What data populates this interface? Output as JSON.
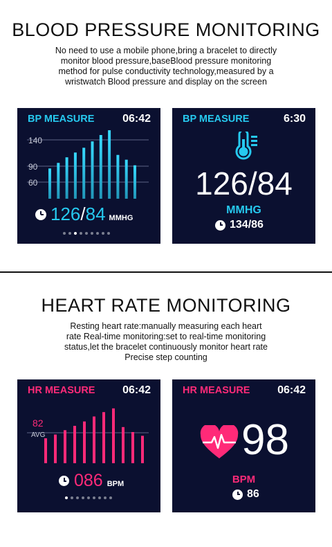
{
  "blood_pressure": {
    "title": "BLOOD PRESSURE MONITORING",
    "description": [
      "No need to use a mobile phone,bring a bracelet to directly",
      "monitor blood pressure,baseBlood pressure monitoring",
      "method for pulse conductivity technology,measured by a",
      "wristwatch Blood pressure and display on the screen"
    ],
    "screen1": {
      "label": "BP MEASURE",
      "time": "06:42",
      "y_ticks": [
        "140",
        "90",
        "60"
      ],
      "systolic": "126",
      "separator": "/",
      "diastolic": "84",
      "unit": "MMHG",
      "bars": [
        0.38,
        0.45,
        0.52,
        0.58,
        0.64,
        0.72,
        0.8,
        0.86,
        0.55,
        0.49,
        0.42
      ],
      "page_count": 9,
      "active_page": 2
    },
    "screen2": {
      "label": "BP MEASURE",
      "time": "6:30",
      "reading": "126/84",
      "unit": "MMHG",
      "previous": "134/86"
    }
  },
  "heart_rate": {
    "title": "HEART RATE MONITORING",
    "description": [
      "Resting heart rate:manually measuring each heart",
      "rate Real-time monitoring:set to real-time monitoring",
      "status,let the bracelet continuously monitor heart rate",
      "Precise step counting"
    ],
    "screen1": {
      "label": "HR MEASURE",
      "time": "06:42",
      "avg_value": "82",
      "avg_label": "AVG",
      "reading": "086",
      "unit": "BPM",
      "bars": [
        0.4,
        0.46,
        0.53,
        0.6,
        0.67,
        0.75,
        0.82,
        0.88,
        0.58,
        0.5,
        0.44
      ],
      "page_count": 9,
      "active_page": 0
    },
    "screen2": {
      "label": "HR MEASURE",
      "time": "06:42",
      "reading": "98",
      "unit": "BPM",
      "previous": "86"
    }
  },
  "colors": {
    "screen_bg": "#0b1030",
    "bp_accent": "#26c9ef",
    "hr_accent": "#ff2a78"
  },
  "icons": [
    "clock-icon",
    "thermometer-icon",
    "heart-pulse-icon"
  ]
}
